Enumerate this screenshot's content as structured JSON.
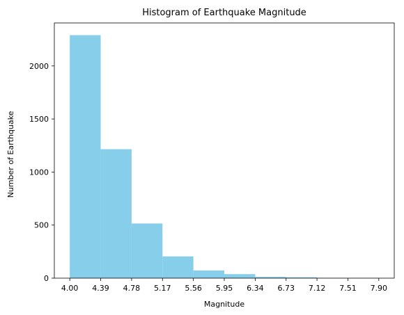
{
  "chart_data": {
    "type": "bar",
    "title": "Histogram of Earthquake Magnitude",
    "xlabel": "Magnitude",
    "ylabel": "Number of Earthquake",
    "bin_edges": [
      4.0,
      4.39,
      4.78,
      5.17,
      5.56,
      5.95,
      6.34,
      6.73,
      7.12,
      7.51,
      7.9
    ],
    "x_tick_labels": [
      "4.00",
      "4.39",
      "4.78",
      "5.17",
      "5.56",
      "5.95",
      "6.34",
      "6.73",
      "7.12",
      "7.51",
      "7.90"
    ],
    "values": [
      2290,
      1215,
      515,
      205,
      72,
      38,
      12,
      8,
      3,
      2
    ],
    "y_ticks": [
      0,
      500,
      1000,
      1500,
      2000
    ],
    "y_tick_labels": [
      "0",
      "500",
      "1000",
      "1500",
      "2000"
    ],
    "xlim": [
      3.805,
      8.095
    ],
    "ylim": [
      0,
      2405
    ],
    "bar_color": "#87ceeb",
    "grid": false,
    "legend": "none"
  }
}
